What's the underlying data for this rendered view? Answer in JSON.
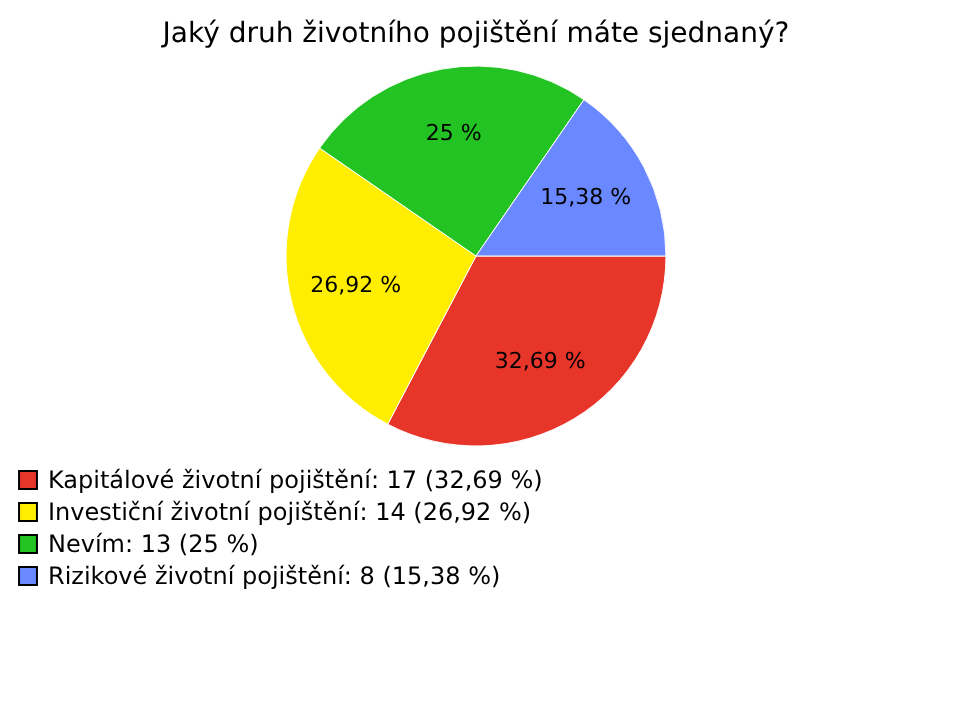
{
  "chart_data": {
    "type": "pie",
    "title": "Jaký druh životního pojištění máte sjednaný?",
    "categories": [
      "Kapitálové životní pojištění: 17 (32,69 %)",
      "Investiční životní pojištění: 14 (26,92 %)",
      "Nevím: 13 (25 %)",
      "Rizikové životní pojištění: 8 (15,38 %)"
    ],
    "values": [
      32.69,
      26.92,
      25,
      15.38
    ],
    "value_labels": [
      "32,69 %",
      "26,92 %",
      "25 %",
      "15,38 %"
    ],
    "colors": [
      "#e8352a",
      "#ffee00",
      "#22c322",
      "#6a88ff"
    ],
    "legend": "bottom left"
  }
}
